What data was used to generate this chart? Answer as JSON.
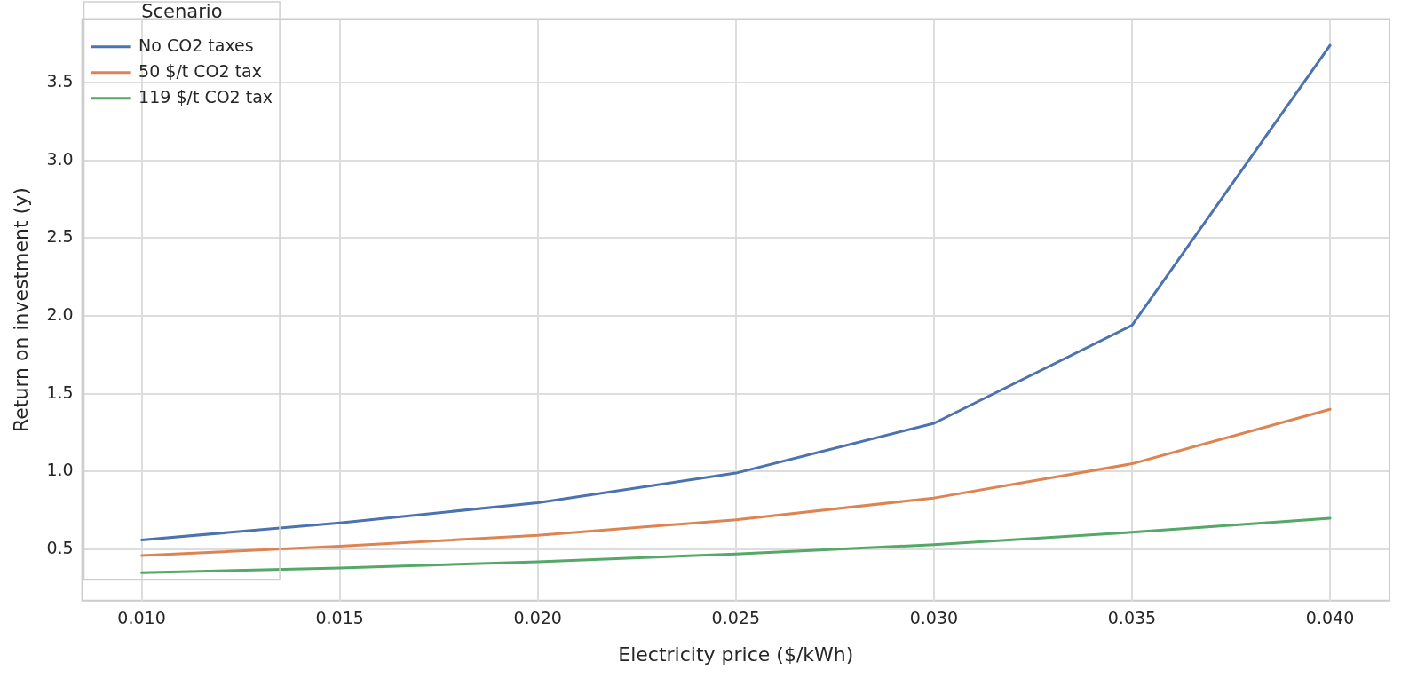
{
  "chart_data": {
    "type": "line",
    "xlabel": "Electricity price ($/kWh)",
    "ylabel": "Return on investment (y)",
    "legend_title": "Scenario",
    "legend": "top left",
    "grid": true,
    "marker": "none",
    "line_style": "solid",
    "x": [
      0.01,
      0.015,
      0.02,
      0.025,
      0.03,
      0.035,
      0.04
    ],
    "series": [
      {
        "name": "No CO2 taxes",
        "color": "#4c72b0",
        "values": [
          0.56,
          0.67,
          0.8,
          0.99,
          1.31,
          1.94,
          3.74
        ]
      },
      {
        "name": "50 $/t CO2 tax",
        "color": "#dd8452",
        "values": [
          0.46,
          0.52,
          0.59,
          0.69,
          0.83,
          1.05,
          1.4
        ]
      },
      {
        "name": "119 $/t CO2 tax",
        "color": "#55a868",
        "values": [
          0.35,
          0.38,
          0.42,
          0.47,
          0.53,
          0.61,
          0.7
        ]
      }
    ],
    "xlim": [
      0.0085,
      0.0415
    ],
    "xticks": [
      {
        "value": 0.01,
        "label": "0.010"
      },
      {
        "value": 0.015,
        "label": "0.015"
      },
      {
        "value": 0.02,
        "label": "0.020"
      },
      {
        "value": 0.025,
        "label": "0.025"
      },
      {
        "value": 0.03,
        "label": "0.030"
      },
      {
        "value": 0.035,
        "label": "0.035"
      },
      {
        "value": 0.04,
        "label": "0.040"
      }
    ],
    "ylim": [
      0.17,
      3.91
    ],
    "yticks": [
      {
        "value": 0.5,
        "label": "0.5"
      },
      {
        "value": 1.0,
        "label": "1.0"
      },
      {
        "value": 1.5,
        "label": "1.5"
      },
      {
        "value": 2.0,
        "label": "2.0"
      },
      {
        "value": 2.5,
        "label": "2.5"
      },
      {
        "value": 3.0,
        "label": "3.0"
      },
      {
        "value": 3.5,
        "label": "3.5"
      }
    ]
  }
}
